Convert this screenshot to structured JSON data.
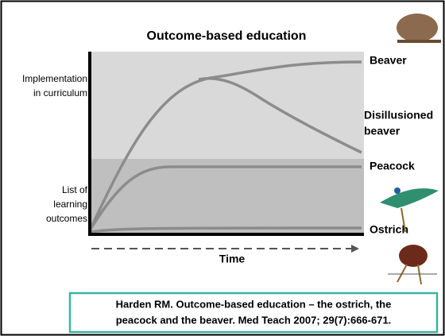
{
  "title": "Outcome-based education",
  "y_labels": {
    "top": [
      "Implementation",
      "in curriculum"
    ],
    "bottom": [
      "List of",
      "learning",
      "outcomes"
    ]
  },
  "x_label": "Time",
  "curves": {
    "beaver": "Beaver",
    "disillusioned": [
      "Disillusioned",
      "beaver"
    ],
    "peacock": "Peacock",
    "ostrich": "Ostrich"
  },
  "citation": [
    "Harden RM. Outcome-based education – the ostrich, the",
    "peacock and the beaver. Med Teach 2007; 29(7):666-671."
  ]
}
